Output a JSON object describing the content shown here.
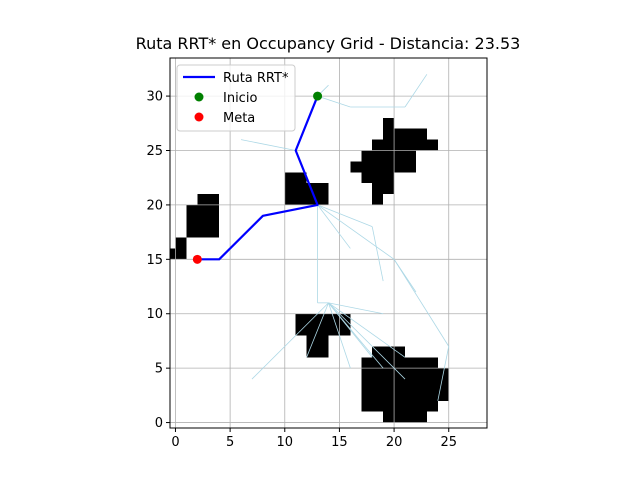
{
  "chart_data": {
    "type": "scatter",
    "title": "Ruta RRT* en Occupancy Grid - Distancia: 23.53",
    "xlabel": "",
    "ylabel": "",
    "xlim": [
      -0.5,
      28.5
    ],
    "ylim": [
      -0.5,
      33.5
    ],
    "xticks": [
      0,
      5,
      10,
      15,
      20,
      25
    ],
    "yticks": [
      0,
      5,
      10,
      15,
      20,
      25,
      30
    ],
    "grid": true,
    "legend_position": "upper-left",
    "colors": {
      "obstacle": "#000000",
      "tree": "#add8e6",
      "path": "#0000ff",
      "start": "#008000",
      "goal": "#ff0000",
      "grid": "#b0b0b0"
    },
    "obstacle_rects": [
      [
        22,
        24,
        25,
        26
      ],
      [
        21,
        23,
        26,
        27
      ],
      [
        20,
        22,
        26,
        27
      ],
      [
        20,
        22,
        23,
        27
      ],
      [
        19,
        20,
        21,
        28
      ],
      [
        19,
        20,
        26,
        27
      ],
      [
        18,
        19,
        20,
        26
      ],
      [
        17,
        18,
        22,
        25
      ],
      [
        16,
        17,
        23,
        24
      ],
      [
        24,
        25,
        2,
        5
      ],
      [
        23,
        24,
        1,
        6
      ],
      [
        22,
        23,
        0,
        6
      ],
      [
        21,
        22,
        0,
        6
      ],
      [
        20,
        21,
        0,
        7
      ],
      [
        19,
        20,
        0,
        7
      ],
      [
        18,
        19,
        1,
        7
      ],
      [
        17,
        18,
        1,
        6
      ],
      [
        14,
        16,
        8,
        10
      ],
      [
        12,
        14,
        6,
        10
      ],
      [
        11,
        12,
        8,
        10
      ],
      [
        12,
        14,
        20,
        22
      ],
      [
        10,
        12,
        20,
        23
      ],
      [
        2,
        4,
        17,
        21
      ],
      [
        1,
        2,
        17,
        20
      ],
      [
        0,
        1,
        15,
        17
      ],
      [
        -1,
        0,
        15,
        16
      ]
    ],
    "tree_edges": [
      [
        [
          13,
          30
        ],
        [
          14,
          31
        ]
      ],
      [
        [
          13,
          30
        ],
        [
          16,
          29
        ]
      ],
      [
        [
          16,
          29
        ],
        [
          21,
          29
        ]
      ],
      [
        [
          21,
          29
        ],
        [
          23,
          32
        ]
      ],
      [
        [
          11,
          25
        ],
        [
          6,
          26
        ]
      ],
      [
        [
          13,
          20
        ],
        [
          16,
          16
        ]
      ],
      [
        [
          13,
          20
        ],
        [
          18,
          18
        ]
      ],
      [
        [
          18,
          18
        ],
        [
          19,
          13
        ]
      ],
      [
        [
          13,
          20
        ],
        [
          20,
          15
        ]
      ],
      [
        [
          20,
          15
        ],
        [
          22,
          12
        ]
      ],
      [
        [
          20,
          15
        ],
        [
          25,
          7
        ]
      ],
      [
        [
          25,
          7
        ],
        [
          24,
          2
        ]
      ],
      [
        [
          13,
          20
        ],
        [
          13,
          11
        ]
      ],
      [
        [
          13,
          11
        ],
        [
          14,
          11
        ]
      ],
      [
        [
          14,
          11
        ],
        [
          7,
          4
        ]
      ],
      [
        [
          14,
          11
        ],
        [
          12,
          6
        ]
      ],
      [
        [
          14,
          11
        ],
        [
          16,
          5
        ]
      ],
      [
        [
          14,
          11
        ],
        [
          19,
          5
        ]
      ],
      [
        [
          14,
          11
        ],
        [
          21,
          6
        ]
      ],
      [
        [
          14,
          11
        ],
        [
          21,
          4
        ]
      ],
      [
        [
          14,
          11
        ],
        [
          19,
          10
        ]
      ],
      [
        [
          14,
          11
        ],
        [
          18,
          6
        ]
      ]
    ],
    "series": [
      {
        "name": "Ruta RRT*",
        "kind": "line",
        "x": [
          2,
          4,
          8,
          13,
          11,
          13
        ],
        "y": [
          15,
          15,
          19,
          20,
          25,
          30
        ]
      },
      {
        "name": "Inicio",
        "kind": "point",
        "x": [
          13
        ],
        "y": [
          30
        ]
      },
      {
        "name": "Meta",
        "kind": "point",
        "x": [
          2
        ],
        "y": [
          15
        ]
      }
    ]
  }
}
